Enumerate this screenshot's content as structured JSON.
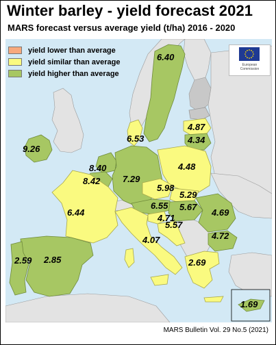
{
  "title": "Winter barley - yield forecast 2021",
  "subtitle": "MARS forecast versus average yield (t/ha) 2016 - 2020",
  "legend": [
    {
      "label": "yield lower than average",
      "color": "#f7a97d"
    },
    {
      "label": "yield similar than average",
      "color": "#fafa80"
    },
    {
      "label": "yield higher than average",
      "color": "#a7c763"
    }
  ],
  "logo": {
    "name": "eu-logo",
    "caption_line1": "European",
    "caption_line2": "Commission"
  },
  "values": [
    {
      "id": "sweden",
      "value": "6.40"
    },
    {
      "id": "ireland",
      "value": "9.26"
    },
    {
      "id": "denmark",
      "value": "6.53"
    },
    {
      "id": "latvia",
      "value": "4.87"
    },
    {
      "id": "lithuania",
      "value": "4.34"
    },
    {
      "id": "netherlands",
      "value": "8.40"
    },
    {
      "id": "belgium",
      "value": "8.42"
    },
    {
      "id": "germany",
      "value": "7.29"
    },
    {
      "id": "poland",
      "value": "4.48"
    },
    {
      "id": "czechia",
      "value": "5.98"
    },
    {
      "id": "slovakia",
      "value": "5.29"
    },
    {
      "id": "austria",
      "value": "6.55"
    },
    {
      "id": "hungary",
      "value": "5.67"
    },
    {
      "id": "slovenia",
      "value": "4.71"
    },
    {
      "id": "croatia",
      "value": "5.57"
    },
    {
      "id": "romania",
      "value": "4.69"
    },
    {
      "id": "bulgaria",
      "value": "4.72"
    },
    {
      "id": "france",
      "value": "6.44"
    },
    {
      "id": "italy",
      "value": "4.07"
    },
    {
      "id": "portugal",
      "value": "2.59"
    },
    {
      "id": "spain",
      "value": "2.85"
    },
    {
      "id": "greece",
      "value": "2.69"
    },
    {
      "id": "cyprus",
      "value": "1.69"
    }
  ],
  "footer": "MARS Bulletin Vol. 29 No.5 (2021)"
}
